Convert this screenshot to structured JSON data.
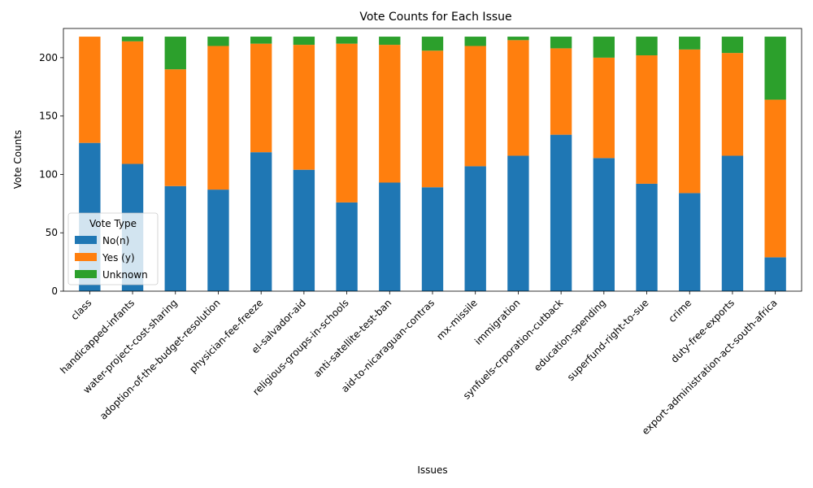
{
  "chart_data": {
    "type": "bar",
    "stacked": true,
    "title": "Vote Counts for Each Issue",
    "xlabel": "Issues",
    "ylabel": "Vote Counts",
    "ylim": [
      0,
      225
    ],
    "yticks": [
      0,
      50,
      100,
      150,
      200
    ],
    "grid": false,
    "legend": {
      "title": "Vote Type",
      "placement": "lower-left"
    },
    "categories": [
      "class",
      "handicapped-infants",
      "water-project-cost-sharing",
      "adoption-of-the-budget-resolution",
      "physician-fee-freeze",
      "el-salvador-aid",
      "religious-groups-in-schools",
      "anti-satellite-test-ban",
      "aid-to-nicaraguan-contras",
      "mx-missile",
      "immigration",
      "synfuels-crporation-cutback",
      "education-spending",
      "superfund-right-to-sue",
      "crime",
      "duty-free-exports",
      "export-administration-act-south-africa"
    ],
    "series": [
      {
        "name": "No(n)",
        "color": "#1f77b4",
        "values": [
          127,
          109,
          90,
          87,
          119,
          104,
          76,
          93,
          89,
          107,
          116,
          134,
          114,
          92,
          84,
          116,
          29
        ]
      },
      {
        "name": "Yes (y)",
        "color": "#ff7f0e",
        "values": [
          91,
          105,
          100,
          123,
          93,
          107,
          136,
          118,
          117,
          103,
          99,
          74,
          86,
          110,
          123,
          88,
          135
        ]
      },
      {
        "name": "Unknown",
        "color": "#2ca02c",
        "values": [
          0,
          4,
          28,
          8,
          6,
          7,
          6,
          7,
          12,
          8,
          3,
          10,
          18,
          16,
          11,
          14,
          54
        ]
      }
    ]
  }
}
